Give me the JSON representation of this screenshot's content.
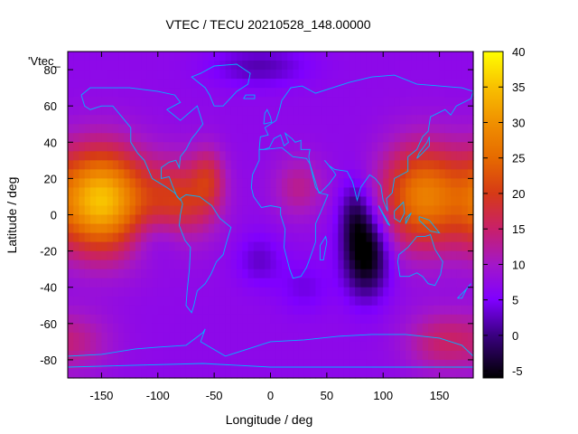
{
  "chart_data": {
    "type": "heatmap",
    "title": "VTEC / TECU 20210528_148.00000",
    "xlabel": "Longitude / deg",
    "ylabel": "Latitude / deg",
    "series_label": "'Vtec_",
    "xlim": [
      -180,
      180
    ],
    "ylim": [
      -90,
      90
    ],
    "xticks": [
      -150,
      -100,
      -50,
      0,
      50,
      100,
      150
    ],
    "yticks": [
      -80,
      -60,
      -40,
      -20,
      0,
      20,
      40,
      60,
      80
    ],
    "colorbar": {
      "range": [
        -6,
        40
      ],
      "ticks": [
        -5,
        0,
        5,
        10,
        15,
        20,
        25,
        30,
        35,
        40
      ],
      "palette_stops": [
        [
          -6,
          "#000000"
        ],
        [
          0,
          "#3a0080"
        ],
        [
          5,
          "#7f00ff"
        ],
        [
          10,
          "#a317c8"
        ],
        [
          15,
          "#c8206a"
        ],
        [
          20,
          "#d63a16"
        ],
        [
          25,
          "#e66a00"
        ],
        [
          30,
          "#f09000"
        ],
        [
          35,
          "#f8c000"
        ],
        [
          40,
          "#ffff00"
        ]
      ]
    },
    "field": {
      "background": 7,
      "features": [
        {
          "lon": -150,
          "lat": 8,
          "amp": 28,
          "slon": 28,
          "slat": 20
        },
        {
          "lon": -80,
          "lat": 8,
          "amp": 12,
          "slon": 22,
          "slat": 16
        },
        {
          "lon": -55,
          "lat": 20,
          "amp": 8,
          "slon": 10,
          "slat": 12
        },
        {
          "lon": 25,
          "lat": 15,
          "amp": 6,
          "slon": 16,
          "slat": 12
        },
        {
          "lon": 135,
          "lat": 10,
          "amp": 20,
          "slon": 26,
          "slat": 20
        },
        {
          "lon": 150,
          "lat": -70,
          "amp": 7,
          "slon": 22,
          "slat": 12
        },
        {
          "lon": -170,
          "lat": -70,
          "amp": 5,
          "slon": 22,
          "slat": 12
        },
        {
          "lon": 85,
          "lat": -22,
          "amp": -14,
          "slon": 14,
          "slat": 16
        },
        {
          "lon": 75,
          "lat": 0,
          "amp": -7,
          "slon": 10,
          "slat": 14
        },
        {
          "lon": -10,
          "lat": 82,
          "amp": -5,
          "slon": 30,
          "slat": 8
        },
        {
          "lon": -100,
          "lat": -12,
          "amp": -4,
          "slon": 18,
          "slat": 10
        },
        {
          "lon": -10,
          "lat": -25,
          "amp": -4,
          "slon": 14,
          "slat": 10
        },
        {
          "lon": 30,
          "lat": -40,
          "amp": -3,
          "slon": 16,
          "slat": 10
        }
      ]
    },
    "coastlines": [
      [
        [
          -168,
          66
        ],
        [
          -160,
          70
        ],
        [
          -140,
          70
        ],
        [
          -125,
          70
        ],
        [
          -100,
          68
        ],
        [
          -85,
          66
        ],
        [
          -80,
          62
        ],
        [
          -92,
          58
        ],
        [
          -80,
          52
        ],
        [
          -65,
          60
        ],
        [
          -60,
          50
        ],
        [
          -66,
          45
        ],
        [
          -70,
          42
        ],
        [
          -75,
          36
        ],
        [
          -80,
          32
        ],
        [
          -81,
          26
        ],
        [
          -84,
          30
        ],
        [
          -90,
          29
        ],
        [
          -97,
          26
        ],
        [
          -97,
          20
        ],
        [
          -90,
          21
        ],
        [
          -87,
          16
        ],
        [
          -83,
          10
        ],
        [
          -80,
          8
        ],
        [
          -85,
          12
        ],
        [
          -92,
          15
        ],
        [
          -105,
          20
        ],
        [
          -112,
          30
        ],
        [
          -118,
          34
        ],
        [
          -124,
          40
        ],
        [
          -124,
          48
        ],
        [
          -132,
          54
        ],
        [
          -140,
          60
        ],
        [
          -150,
          60
        ],
        [
          -160,
          58
        ],
        [
          -165,
          60
        ],
        [
          -168,
          66
        ]
      ],
      [
        [
          -80,
          9
        ],
        [
          -75,
          11
        ],
        [
          -63,
          10
        ],
        [
          -52,
          5
        ],
        [
          -45,
          -2
        ],
        [
          -35,
          -7
        ],
        [
          -39,
          -15
        ],
        [
          -42,
          -22
        ],
        [
          -48,
          -26
        ],
        [
          -53,
          -33
        ],
        [
          -58,
          -38
        ],
        [
          -65,
          -42
        ],
        [
          -68,
          -50
        ],
        [
          -70,
          -54
        ],
        [
          -75,
          -50
        ],
        [
          -74,
          -42
        ],
        [
          -72,
          -30
        ],
        [
          -71,
          -18
        ],
        [
          -76,
          -14
        ],
        [
          -81,
          -6
        ],
        [
          -80,
          0
        ],
        [
          -78,
          6
        ],
        [
          -80,
          9
        ]
      ],
      [
        [
          -10,
          36
        ],
        [
          -5,
          36
        ],
        [
          10,
          37
        ],
        [
          20,
          32
        ],
        [
          32,
          31
        ],
        [
          35,
          28
        ],
        [
          43,
          12
        ],
        [
          51,
          11
        ],
        [
          45,
          2
        ],
        [
          40,
          -5
        ],
        [
          40,
          -15
        ],
        [
          35,
          -24
        ],
        [
          32,
          -29
        ],
        [
          27,
          -34
        ],
        [
          20,
          -35
        ],
        [
          17,
          -30
        ],
        [
          12,
          -18
        ],
        [
          13,
          -8
        ],
        [
          9,
          0
        ],
        [
          9,
          4
        ],
        [
          0,
          5
        ],
        [
          -8,
          4
        ],
        [
          -15,
          10
        ],
        [
          -17,
          15
        ],
        [
          -16,
          22
        ],
        [
          -10,
          30
        ],
        [
          -10,
          36
        ]
      ],
      [
        [
          -10,
          36
        ],
        [
          -9,
          43
        ],
        [
          -2,
          44
        ],
        [
          -5,
          48
        ],
        [
          5,
          52
        ],
        [
          8,
          58
        ],
        [
          10,
          63
        ],
        [
          18,
          70
        ],
        [
          28,
          71
        ],
        [
          40,
          67
        ],
        [
          55,
          70
        ],
        [
          70,
          73
        ],
        [
          90,
          76
        ],
        [
          110,
          77
        ],
        [
          130,
          72
        ],
        [
          150,
          71
        ],
        [
          170,
          70
        ],
        [
          180,
          68
        ],
        [
          178,
          64
        ],
        [
          165,
          60
        ],
        [
          160,
          55
        ],
        [
          155,
          58
        ],
        [
          142,
          54
        ],
        [
          140,
          46
        ],
        [
          135,
          43
        ],
        [
          130,
          36
        ],
        [
          122,
          32
        ],
        [
          122,
          24
        ],
        [
          110,
          20
        ],
        [
          108,
          12
        ],
        [
          103,
          9
        ],
        [
          104,
          2
        ],
        [
          100,
          8
        ],
        [
          98,
          16
        ],
        [
          93,
          20
        ],
        [
          88,
          22
        ],
        [
          80,
          15
        ],
        [
          77,
          8
        ],
        [
          73,
          18
        ],
        [
          68,
          24
        ],
        [
          57,
          25
        ],
        [
          52,
          27
        ],
        [
          48,
          30
        ],
        [
          56,
          24
        ],
        [
          58,
          22
        ],
        [
          52,
          17
        ],
        [
          44,
          12
        ],
        [
          40,
          15
        ],
        [
          35,
          28
        ],
        [
          34,
          32
        ],
        [
          35,
          36
        ],
        [
          27,
          36
        ],
        [
          27,
          41
        ],
        [
          22,
          40
        ],
        [
          19,
          42
        ],
        [
          13,
          45
        ],
        [
          16,
          40
        ],
        [
          12,
          38
        ],
        [
          9,
          44
        ],
        [
          3,
          42
        ],
        [
          -1,
          37
        ],
        [
          -6,
          36
        ],
        [
          -10,
          36
        ]
      ],
      [
        [
          114,
          -22
        ],
        [
          122,
          -18
        ],
        [
          130,
          -12
        ],
        [
          137,
          -12
        ],
        [
          142,
          -11
        ],
        [
          146,
          -19
        ],
        [
          153,
          -26
        ],
        [
          151,
          -33
        ],
        [
          146,
          -39
        ],
        [
          140,
          -38
        ],
        [
          135,
          -34
        ],
        [
          130,
          -32
        ],
        [
          123,
          -34
        ],
        [
          115,
          -34
        ],
        [
          113,
          -26
        ],
        [
          114,
          -22
        ]
      ],
      [
        [
          -50,
          60
        ],
        [
          -42,
          60
        ],
        [
          -30,
          68
        ],
        [
          -20,
          72
        ],
        [
          -18,
          78
        ],
        [
          -30,
          83
        ],
        [
          -50,
          82
        ],
        [
          -62,
          78
        ],
        [
          -70,
          76
        ],
        [
          -58,
          70
        ],
        [
          -54,
          66
        ],
        [
          -50,
          60
        ]
      ],
      [
        [
          -6,
          50
        ],
        [
          1,
          51
        ],
        [
          0,
          54
        ],
        [
          -3,
          58
        ],
        [
          -5,
          56
        ],
        [
          -6,
          50
        ]
      ],
      [
        [
          44,
          -25
        ],
        [
          47,
          -25
        ],
        [
          50,
          -15
        ],
        [
          49,
          -12
        ],
        [
          44,
          -17
        ],
        [
          44,
          -25
        ]
      ],
      [
        [
          -24,
          64
        ],
        [
          -14,
          64
        ],
        [
          -14,
          66
        ],
        [
          -22,
          66
        ],
        [
          -24,
          64
        ]
      ],
      [
        [
          130,
          31
        ],
        [
          135,
          34
        ],
        [
          141,
          38
        ],
        [
          141,
          43
        ],
        [
          139,
          40
        ],
        [
          132,
          34
        ],
        [
          130,
          31
        ]
      ],
      [
        [
          120,
          -2
        ],
        [
          125,
          1
        ],
        [
          120,
          -5
        ],
        [
          120,
          -2
        ]
      ],
      [
        [
          96,
          5
        ],
        [
          106,
          -6
        ],
        [
          104,
          -5
        ],
        [
          96,
          5
        ]
      ],
      [
        [
          110,
          2
        ],
        [
          118,
          7
        ],
        [
          119,
          1
        ],
        [
          115,
          -4
        ],
        [
          110,
          -2
        ],
        [
          110,
          2
        ]
      ],
      [
        [
          132,
          -1
        ],
        [
          141,
          -3
        ],
        [
          150,
          -10
        ],
        [
          142,
          -9
        ],
        [
          132,
          -3
        ],
        [
          132,
          -1
        ]
      ],
      [
        [
          166,
          -46
        ],
        [
          174,
          -41
        ],
        [
          178,
          -38
        ],
        [
          174,
          -41
        ],
        [
          170,
          -46
        ],
        [
          166,
          -46
        ]
      ],
      [
        [
          -180,
          -78
        ],
        [
          -150,
          -77
        ],
        [
          -120,
          -74
        ],
        [
          -100,
          -73
        ],
        [
          -75,
          -72
        ],
        [
          -60,
          -65
        ],
        [
          -58,
          -63
        ],
        [
          -62,
          -70
        ],
        [
          -40,
          -78
        ],
        [
          -20,
          -74
        ],
        [
          0,
          -70
        ],
        [
          30,
          -69
        ],
        [
          60,
          -67
        ],
        [
          90,
          -66
        ],
        [
          120,
          -66
        ],
        [
          150,
          -68
        ],
        [
          170,
          -72
        ],
        [
          180,
          -78
        ]
      ],
      [
        [
          -180,
          -84
        ],
        [
          -60,
          -82
        ],
        [
          0,
          -84
        ],
        [
          90,
          -84
        ],
        [
          180,
          -84
        ]
      ]
    ]
  }
}
